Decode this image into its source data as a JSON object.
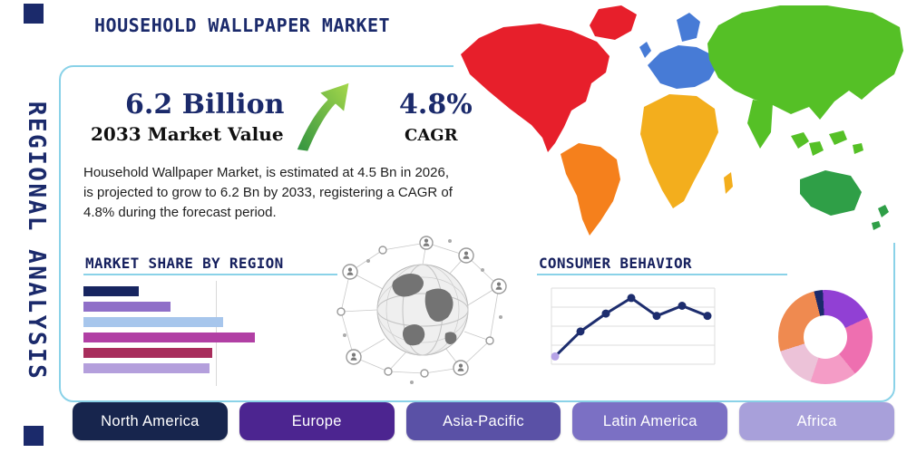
{
  "page": {
    "title": "HOUSEHOLD WALLPAPER MARKET",
    "side_label": "REGIONAL ANALYSIS",
    "accent_teal": "#8ad2e8",
    "navy": "#1b2a6b"
  },
  "stats": {
    "market_value": "6.2 Billion",
    "market_value_label": "2033 Market Value",
    "cagr_value": "4.8%",
    "cagr_label": "CAGR",
    "description": "Household Wallpaper Market, is estimated at 4.5 Bn in 2026, is projected to grow to 6.2 Bn by 2033, registering a CAGR of 4.8% during the forecast period."
  },
  "region_buttons": [
    {
      "label": "North America",
      "color": "#17254d"
    },
    {
      "label": "Europe",
      "color": "#4c2590"
    },
    {
      "label": "Asia-Pacific",
      "color": "#5a51a6"
    },
    {
      "label": "Latin America",
      "color": "#7b70c4"
    },
    {
      "label": "Africa",
      "color": "#a8a0da"
    }
  ],
  "map_regions": [
    {
      "key": "na",
      "name": "North America",
      "color": "#e71f2b"
    },
    {
      "key": "sa",
      "name": "South America",
      "color": "#f5801c"
    },
    {
      "key": "eu",
      "name": "Europe",
      "color": "#477bd6"
    },
    {
      "key": "af",
      "name": "Africa",
      "color": "#f3ae1d"
    },
    {
      "key": "as",
      "name": "Asia",
      "color": "#55c026"
    },
    {
      "key": "au",
      "name": "Australia",
      "color": "#2f9f47"
    }
  ],
  "chart_data": [
    {
      "type": "bar",
      "title": "MARKET SHARE BY REGION",
      "orientation": "horizontal",
      "labels_not_shown": true,
      "values": [
        21,
        33,
        53,
        65,
        49,
        48
      ],
      "colors": [
        "#172560",
        "#8f6fc8",
        "#a7c6ec",
        "#b13fa4",
        "#a82d5c",
        "#b49fdc"
      ],
      "note": "values are relative bar lengths (% of chart width), estimated; no numeric labels shown"
    },
    {
      "type": "line",
      "title": "CONSUMER BEHAVIOR",
      "labels_not_shown": true,
      "x": [
        1,
        2,
        3,
        4,
        5,
        6,
        7
      ],
      "values": [
        10,
        42,
        65,
        85,
        62,
        75,
        62
      ],
      "line_color": "#1d2d6e",
      "first_point_color": "#b6a3e6",
      "grid": true,
      "note": "values on 0-100 relative scale, estimated; no axis labels shown"
    },
    {
      "type": "pie",
      "donut": true,
      "labels_not_shown": true,
      "segments": [
        {
          "value": 3,
          "color": "#1b2a6b"
        },
        {
          "value": 19,
          "color": "#9140d4"
        },
        {
          "value": 21,
          "color": "#ee6fb0"
        },
        {
          "value": 16,
          "color": "#f49cc6"
        },
        {
          "value": 15,
          "color": "#ecc2d8"
        },
        {
          "value": 26,
          "color": "#ef8a50"
        }
      ],
      "note": "segment shares estimated from arc angles; no labels shown"
    }
  ]
}
